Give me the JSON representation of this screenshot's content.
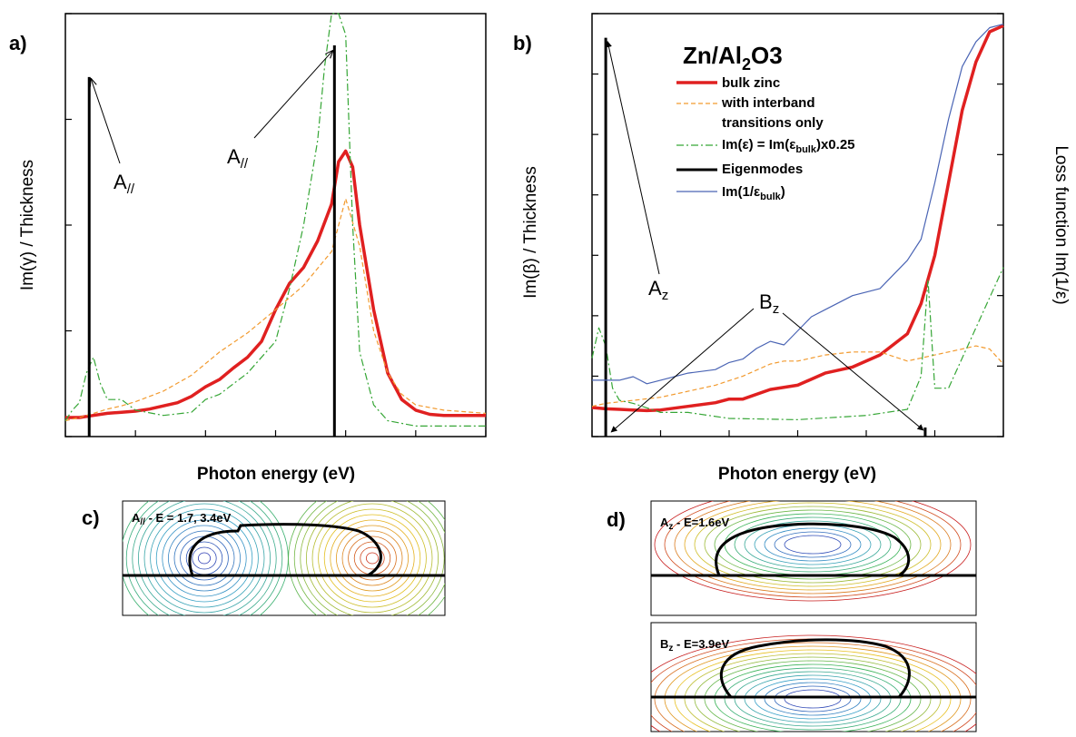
{
  "panels": {
    "a": {
      "label": "a)"
    },
    "b": {
      "label": "b)"
    },
    "c": {
      "label": "c)",
      "mode": "A",
      "mode_sub": "//",
      "energy": " - E = 1.7, 3.4eV"
    },
    "d": {
      "label": "d)",
      "top_mode": "A",
      "top_mode_sub": "z",
      "top_energy": " - E=1.6eV",
      "bottom_mode": "B",
      "bottom_mode_sub": "z",
      "bottom_energy": " - E=3.9eV"
    }
  },
  "legend": {
    "im_eps": {
      "a": "Im(ε) =  ",
      "b": "Im(ε",
      "sub": "bulk",
      "c": ")x0.25"
    },
    "loss": {
      "a": "Im(1/ε",
      "sub": "bulk",
      "b": ")"
    }
  },
  "colors": {
    "bulk": "#e02020",
    "interband": "#f29a2e",
    "scaled": "#36a636",
    "eigen": "#000000",
    "loss": "#4a64b4"
  },
  "chart_data": [
    {
      "type": "line",
      "xlabel": "Photon energy (eV)",
      "ylabel": "Im(γ) / Thickness",
      "xlim": [
        1.5,
        4.5
      ],
      "ylim": [
        0,
        40
      ],
      "xticks": [
        "1.5",
        "2.0",
        "2.5",
        "3.0",
        "3.5",
        "4.0",
        "4.5"
      ],
      "yticks": [
        "0",
        "10",
        "20",
        "30",
        "40"
      ],
      "series": [
        {
          "key": "bulk",
          "x": [
            1.5,
            1.6,
            1.7,
            1.8,
            1.9,
            2.0,
            2.1,
            2.2,
            2.3,
            2.4,
            2.5,
            2.6,
            2.7,
            2.8,
            2.9,
            3.0,
            3.1,
            3.2,
            3.3,
            3.4,
            3.45,
            3.5,
            3.55,
            3.6,
            3.7,
            3.8,
            3.9,
            4.0,
            4.1,
            4.2,
            4.3,
            4.5
          ],
          "y": [
            1.8,
            1.8,
            2.0,
            2.2,
            2.3,
            2.4,
            2.6,
            2.9,
            3.2,
            3.8,
            4.7,
            5.4,
            6.5,
            7.5,
            9.0,
            12.0,
            14.5,
            16.0,
            18.5,
            22.0,
            26.0,
            27.0,
            25.5,
            20.0,
            12.0,
            6.0,
            3.5,
            2.5,
            2.1,
            2.0,
            2.0,
            2.0
          ]
        },
        {
          "key": "interband",
          "x": [
            1.5,
            1.6,
            1.7,
            1.8,
            1.9,
            2.0,
            2.2,
            2.4,
            2.6,
            2.8,
            3.0,
            3.2,
            3.4,
            3.5,
            3.6,
            3.7,
            3.8,
            3.9,
            4.0,
            4.2,
            4.5
          ],
          "y": [
            1.5,
            1.8,
            2.2,
            2.6,
            2.9,
            3.3,
            4.3,
            5.8,
            8.0,
            9.8,
            12.0,
            14.3,
            17.5,
            22.5,
            18.0,
            10.0,
            6.0,
            4.0,
            3.0,
            2.5,
            2.2
          ]
        },
        {
          "key": "scaled",
          "x": [
            1.5,
            1.55,
            1.6,
            1.65,
            1.7,
            1.75,
            1.8,
            1.9,
            2.0,
            2.2,
            2.4,
            2.5,
            2.6,
            2.8,
            3.0,
            3.1,
            3.2,
            3.3,
            3.35,
            3.4,
            3.45,
            3.5,
            3.55,
            3.6,
            3.7,
            3.8,
            4.0,
            4.5
          ],
          "y": [
            1.5,
            2.5,
            3.2,
            6.0,
            7.5,
            5.0,
            3.5,
            3.5,
            2.5,
            2.0,
            2.3,
            3.5,
            4.0,
            6.0,
            9.0,
            14.0,
            20.0,
            28.0,
            35.0,
            40.0,
            40.0,
            38.0,
            20.0,
            8.0,
            3.0,
            1.5,
            1.0,
            1.0
          ]
        },
        {
          "key": "eigen",
          "x": [
            1.67,
            3.42
          ],
          "y": [
            34,
            37
          ]
        }
      ],
      "annotations": [
        {
          "text": "A",
          "sub": "//"
        },
        {
          "text": "A",
          "sub": "//"
        }
      ]
    },
    {
      "type": "line",
      "title": "Zn/Al",
      "title_sub": "2",
      "title_end": "O3",
      "xlabel": "Photon energy (eV)",
      "ylabel": "Im(β)  / Thickness",
      "y2label": "Loss function Im(1/ε)",
      "xlim": [
        1.5,
        4.5
      ],
      "ylim": [
        0,
        0.7
      ],
      "y2lim": [
        0,
        0.12
      ],
      "xticks": [
        "1.5",
        "2.0",
        "2.5",
        "3.0",
        "3.5",
        "4.0",
        "4.5"
      ],
      "yticks": [
        "0.0",
        "0.1",
        "0.2",
        "0.3",
        "0.4",
        "0.5",
        "0.6",
        "0.7"
      ],
      "y2ticks": [
        "0.00",
        "0.02",
        "0.04",
        "0.06",
        "0.08",
        "0.10",
        "0.12"
      ],
      "series": [
        {
          "key": "bulk",
          "name": "bulk zinc",
          "x": [
            1.5,
            1.6,
            1.7,
            1.8,
            1.9,
            2.0,
            2.2,
            2.4,
            2.5,
            2.6,
            2.8,
            3.0,
            3.2,
            3.4,
            3.6,
            3.8,
            3.9,
            4.0,
            4.1,
            4.2,
            4.3,
            4.4,
            4.5
          ],
          "y": [
            0.048,
            0.046,
            0.045,
            0.044,
            0.043,
            0.044,
            0.05,
            0.056,
            0.062,
            0.062,
            0.078,
            0.085,
            0.105,
            0.115,
            0.135,
            0.17,
            0.22,
            0.3,
            0.42,
            0.54,
            0.62,
            0.67,
            0.68
          ]
        },
        {
          "key": "interband",
          "name": "with interband",
          "name_line2": "transitions only",
          "x": [
            1.5,
            1.6,
            1.8,
            2.0,
            2.2,
            2.4,
            2.6,
            2.8,
            2.9,
            3.0,
            3.1,
            3.2,
            3.4,
            3.6,
            3.8,
            4.0,
            4.2,
            4.3,
            4.4,
            4.5
          ],
          "y": [
            0.05,
            0.055,
            0.06,
            0.065,
            0.075,
            0.085,
            0.1,
            0.12,
            0.125,
            0.125,
            0.13,
            0.135,
            0.14,
            0.14,
            0.125,
            0.135,
            0.145,
            0.15,
            0.145,
            0.12
          ]
        },
        {
          "key": "scaled",
          "name": "Im(ε) =  Im(εbulk)x0.25",
          "x": [
            1.5,
            1.55,
            1.6,
            1.65,
            1.7,
            1.8,
            2.0,
            2.2,
            2.5,
            3.0,
            3.5,
            3.8,
            3.9,
            3.95,
            4.0,
            4.1,
            4.3,
            4.5
          ],
          "y": [
            0.13,
            0.18,
            0.15,
            0.08,
            0.06,
            0.055,
            0.04,
            0.04,
            0.03,
            0.028,
            0.035,
            0.045,
            0.1,
            0.26,
            0.08,
            0.08,
            0.18,
            0.28
          ]
        },
        {
          "key": "eigen",
          "name": "Eigenmodes",
          "x": [
            1.6,
            3.93
          ],
          "y": [
            0.66,
            0.015
          ]
        },
        {
          "key": "loss",
          "name": "Im(1/εbulk)",
          "axis": "right",
          "x": [
            1.5,
            1.6,
            1.7,
            1.8,
            1.85,
            1.9,
            2.0,
            2.2,
            2.4,
            2.5,
            2.6,
            2.7,
            2.8,
            2.9,
            3.0,
            3.1,
            3.2,
            3.4,
            3.6,
            3.8,
            3.9,
            4.0,
            4.1,
            4.2,
            4.3,
            4.4,
            4.5
          ],
          "y": [
            0.016,
            0.016,
            0.016,
            0.017,
            0.016,
            0.015,
            0.016,
            0.018,
            0.019,
            0.021,
            0.022,
            0.025,
            0.027,
            0.026,
            0.03,
            0.034,
            0.036,
            0.04,
            0.042,
            0.05,
            0.056,
            0.072,
            0.09,
            0.105,
            0.112,
            0.116,
            0.117
          ]
        }
      ],
      "annotations": [
        {
          "text": "A",
          "sub": "z"
        },
        {
          "text": "B",
          "sub": "z"
        }
      ]
    }
  ]
}
